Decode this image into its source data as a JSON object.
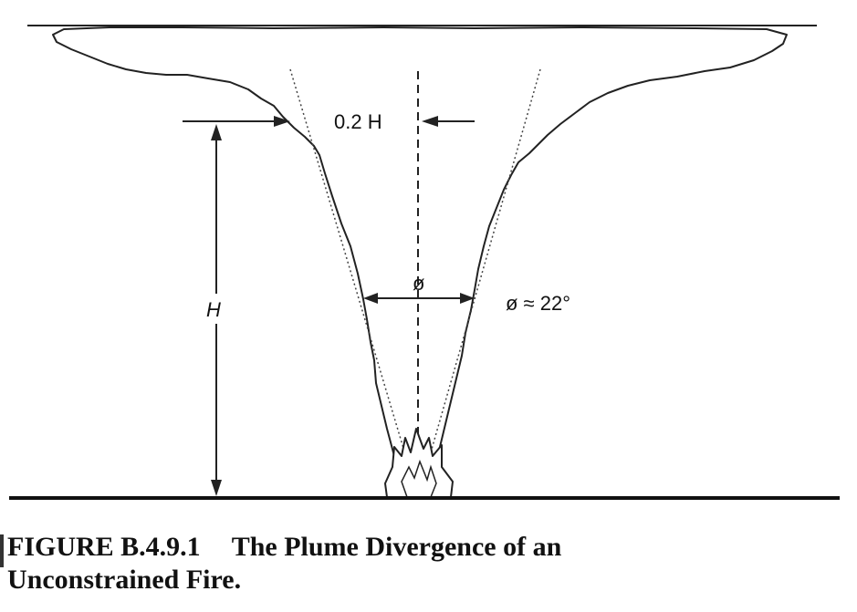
{
  "labels": {
    "width_fraction": "0.2 H",
    "height": "H",
    "angle_symbol": "ø",
    "angle_value": "ø ≈ 22°"
  },
  "caption": {
    "number": "FIGURE B.4.9.1",
    "line1_text": "The Plume Divergence of an",
    "line2_text": "Unconstrained Fire."
  }
}
